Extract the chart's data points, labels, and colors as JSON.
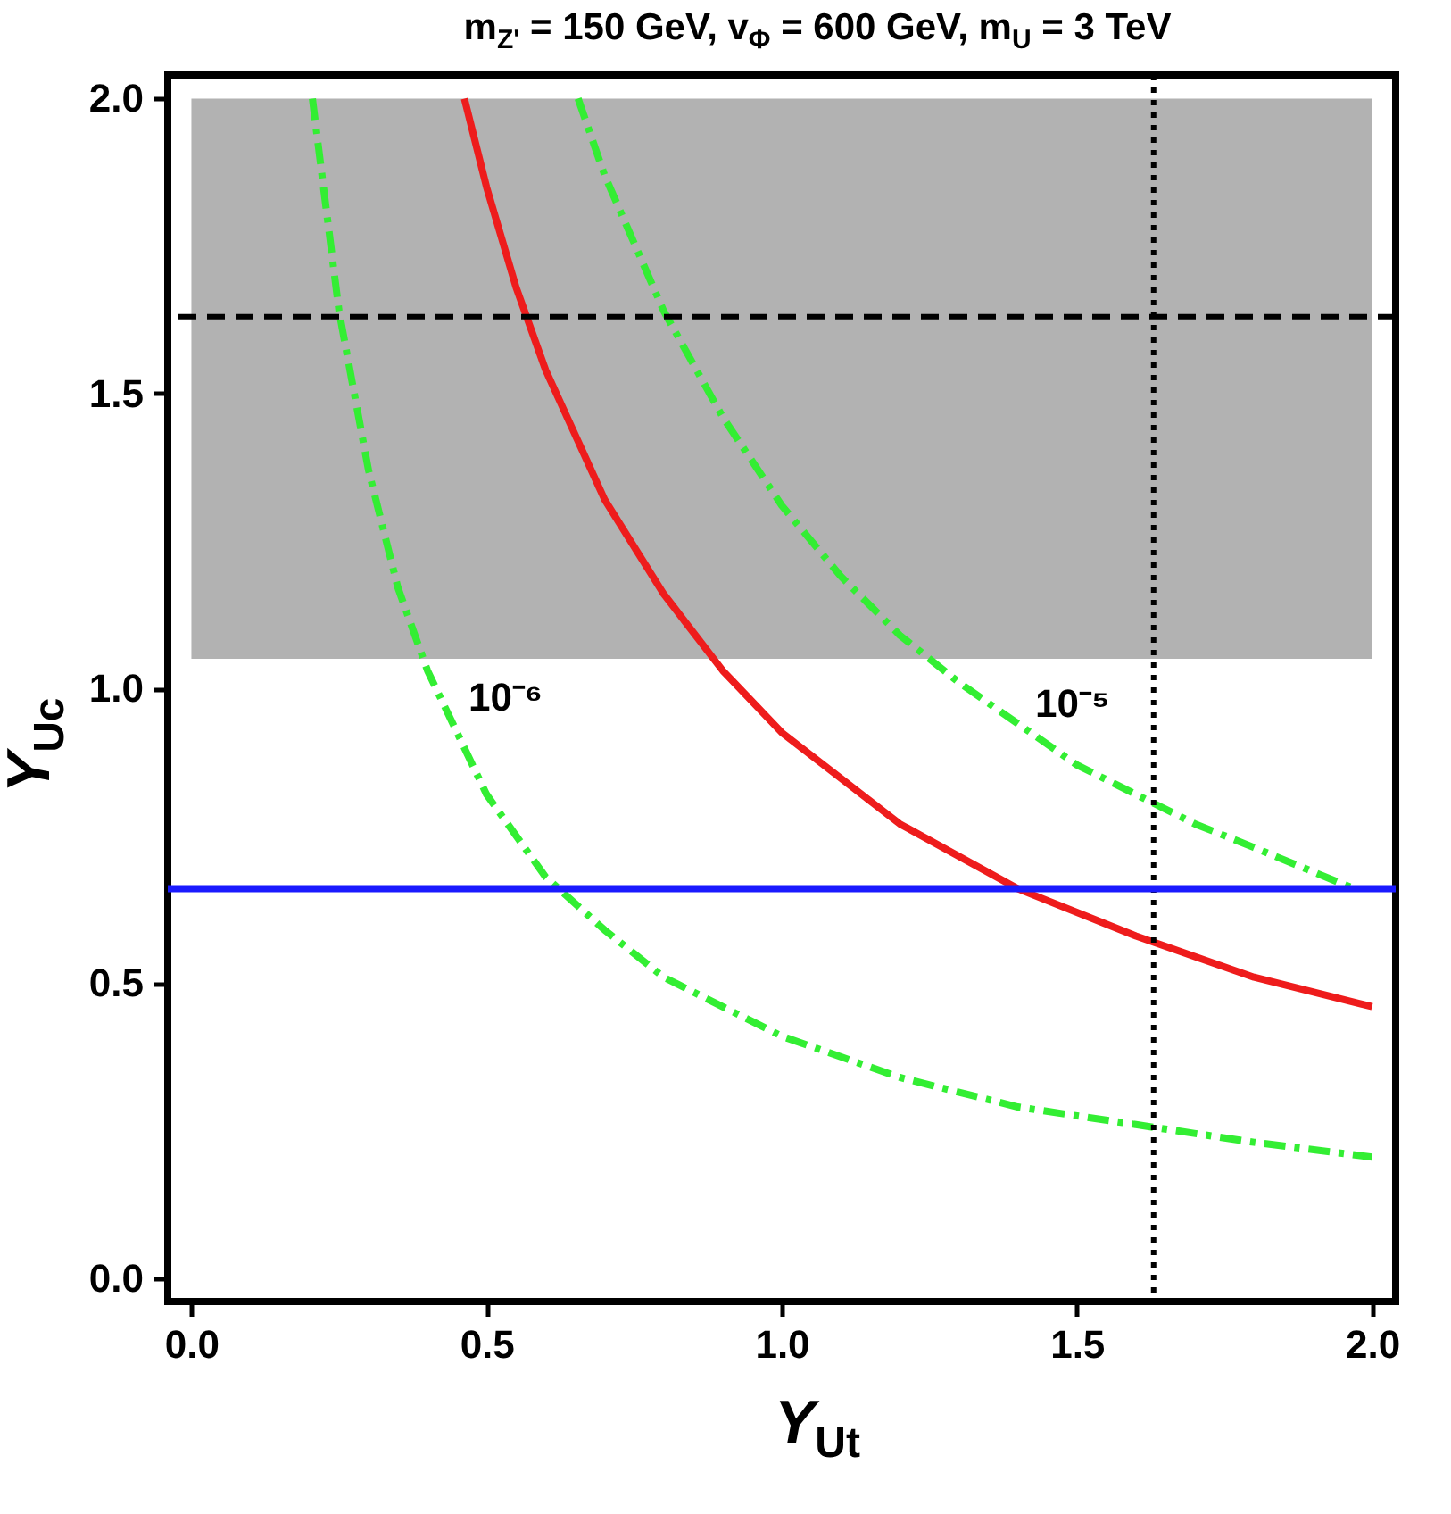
{
  "chart_data": {
    "type": "line",
    "title": "m$_{Z'}$ = 150 GeV, v$_{Φ}$ = 600 GeV, m$_{U}$ = 3 TeV",
    "xlabel": "Y$_{Ut}$",
    "ylabel": "Y$_{Uc}$",
    "xlim": [
      -0.04,
      2.04
    ],
    "ylim": [
      -0.04,
      2.04
    ],
    "xticks": [
      {
        "value": 0,
        "label": "0.0"
      },
      {
        "value": 0.5,
        "label": "0.5"
      },
      {
        "value": 1,
        "label": "1.0"
      },
      {
        "value": 1.5,
        "label": "1.5"
      },
      {
        "value": 2,
        "label": "2.0"
      }
    ],
    "yticks": [
      {
        "value": 0,
        "label": "0.0"
      },
      {
        "value": 0.5,
        "label": "0.5"
      },
      {
        "value": 1,
        "label": "1.0"
      },
      {
        "value": 1.5,
        "label": "1.5"
      },
      {
        "value": 2,
        "label": "2.0"
      }
    ],
    "grid": false,
    "marker": "none",
    "series": [
      {
        "color": "#ee1c1c",
        "line_style": "solid",
        "x": [
          0.4625,
          0.5,
          0.55,
          0.6,
          0.7,
          0.8,
          0.9,
          1.0,
          1.2,
          1.4,
          1.6,
          1.8,
          2.0
        ],
        "values": [
          2.0,
          1.85,
          1.68,
          1.54,
          1.32,
          1.16,
          1.03,
          0.925,
          0.77,
          0.66,
          0.58,
          0.51,
          0.46
        ]
      },
      {
        "color": "#33ee33",
        "line_style": "dashed",
        "x": [
          0.205,
          0.25,
          0.3,
          0.35,
          0.4,
          0.5,
          0.6,
          0.7,
          0.8,
          1.0,
          1.2,
          1.4,
          1.6,
          1.8,
          2.0
        ],
        "values": [
          2.0,
          1.64,
          1.37,
          1.17,
          1.03,
          0.82,
          0.68,
          0.59,
          0.51,
          0.41,
          0.34,
          0.29,
          0.26,
          0.23,
          0.205
        ]
      },
      {
        "color": "#33ee33",
        "line_style": "dashed",
        "x": [
          0.655,
          0.7,
          0.8,
          0.9,
          1.0,
          1.1,
          1.2,
          1.3,
          1.4,
          1.5,
          1.6,
          1.7,
          1.8,
          1.97
        ],
        "values": [
          2.0,
          1.87,
          1.64,
          1.46,
          1.31,
          1.19,
          1.09,
          1.01,
          0.94,
          0.87,
          0.82,
          0.77,
          0.73,
          0.66
        ]
      }
    ],
    "ref_lines": [
      {
        "axis": "y",
        "value": 1.63,
        "color": "#000000",
        "line_style": "dashed"
      },
      {
        "axis": "x",
        "value": 1.63,
        "color": "#000000",
        "line_style": "dotted"
      },
      {
        "axis": "y",
        "value": 0.66,
        "color": "#1a1aff",
        "line_style": "solid"
      }
    ],
    "bands": [
      {
        "axis": "y",
        "from": 1.05,
        "to": 2.0,
        "color": "#b2b2b2"
      }
    ],
    "annotations": [
      {
        "text": "10⁻⁶",
        "x": 0.43,
        "y": 0.95
      },
      {
        "text": "10⁻⁵",
        "x": 1.39,
        "y": 0.94
      }
    ]
  }
}
